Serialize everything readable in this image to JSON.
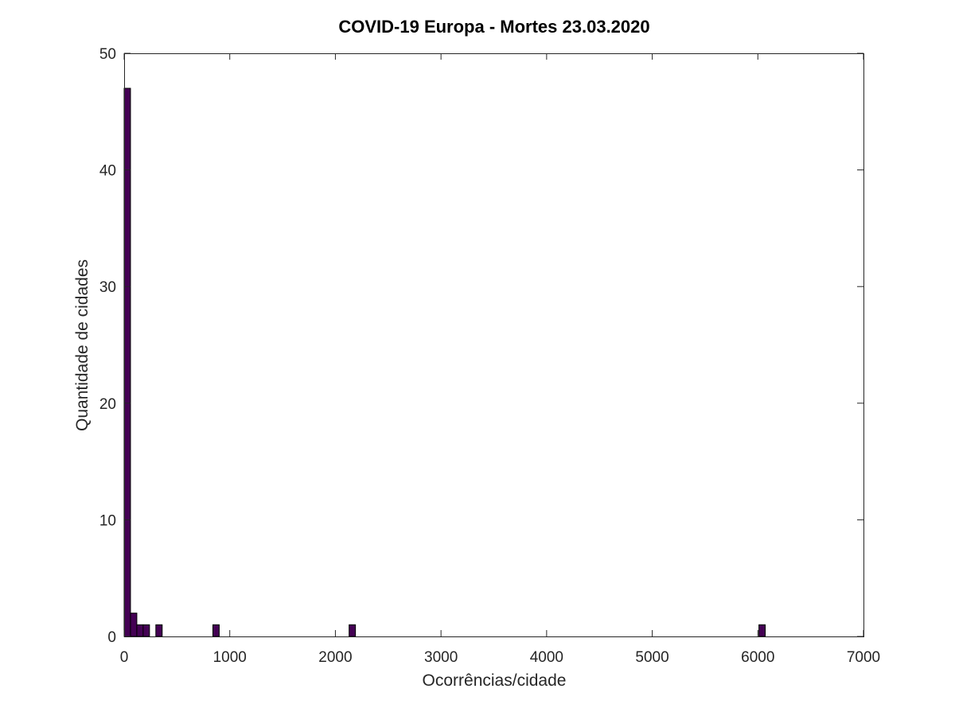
{
  "chart_data": {
    "type": "bar",
    "title": "COVID-19 Europa - Mortes 23.03.2020",
    "xlabel": "Ocorrências/cidade",
    "ylabel": "Quantidade de cidades",
    "xlim": [
      0,
      7000
    ],
    "ylim": [
      0,
      50
    ],
    "xticks": [
      0,
      1000,
      2000,
      3000,
      4000,
      5000,
      6000,
      7000
    ],
    "xtick_labels": [
      "0",
      "1000",
      "2000",
      "3000",
      "4000",
      "5000",
      "6000",
      "7000"
    ],
    "yticks": [
      0,
      10,
      20,
      30,
      40,
      50
    ],
    "ytick_labels": [
      "0",
      "10",
      "20",
      "30",
      "40",
      "50"
    ],
    "bin_width": 60,
    "bins": [
      {
        "x0": 0,
        "x1": 60,
        "count": 47
      },
      {
        "x0": 60,
        "x1": 120,
        "count": 2
      },
      {
        "x0": 120,
        "x1": 180,
        "count": 1
      },
      {
        "x0": 180,
        "x1": 240,
        "count": 1
      },
      {
        "x0": 300,
        "x1": 360,
        "count": 1
      },
      {
        "x0": 840,
        "x1": 900,
        "count": 1
      },
      {
        "x0": 2130,
        "x1": 2190,
        "count": 1
      },
      {
        "x0": 6010,
        "x1": 6070,
        "count": 1
      }
    ],
    "bar_color": "#440154",
    "grid": false,
    "box": true
  }
}
